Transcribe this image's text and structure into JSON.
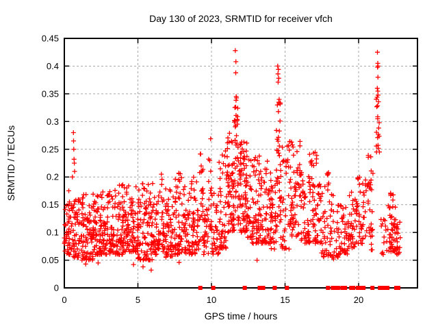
{
  "page": {
    "background": "#ffffff"
  },
  "chart_data": {
    "type": "scatter",
    "title": "Day 130 of 2023, SRMTID for receiver vfch",
    "xlabel": "GPS time / hours",
    "ylabel": "SRMTID / TECUs",
    "xlim": [
      0,
      24
    ],
    "ylim": [
      0,
      0.45
    ],
    "xticks": [
      0,
      5,
      10,
      15,
      20
    ],
    "xtick_labels": [
      "0",
      "5",
      "10",
      "15",
      "20"
    ],
    "yticks": [
      0,
      0.05,
      0.1,
      0.15,
      0.2,
      0.25,
      0.3,
      0.35,
      0.4,
      0.45
    ],
    "ytick_labels": [
      "0",
      "0.05",
      "0.1",
      "0.15",
      "0.2",
      "0.25",
      "0.3",
      "0.35",
      "0.4",
      "0.45"
    ],
    "grid": {
      "style": "dashed",
      "color": "#a8a8a8"
    },
    "legend": "none",
    "series_name": "SRMTID",
    "marker": {
      "shape": "plus",
      "color": "#ff0000",
      "size": 7
    },
    "zero_marker": {
      "shape": "filled-square",
      "color": "#ff0000",
      "size": 6
    },
    "seed": 20230510,
    "point_clusters": [
      [
        0.0,
        0.5,
        45,
        0.06,
        0.155,
        1.4
      ],
      [
        0.5,
        1.0,
        45,
        0.055,
        0.16,
        1.5
      ],
      [
        1.0,
        2.0,
        95,
        0.05,
        0.17,
        1.6
      ],
      [
        2.0,
        3.0,
        95,
        0.06,
        0.175,
        1.6
      ],
      [
        3.0,
        4.0,
        95,
        0.06,
        0.19,
        1.7
      ],
      [
        4.0,
        5.0,
        95,
        0.065,
        0.185,
        1.6
      ],
      [
        5.0,
        6.0,
        95,
        0.05,
        0.19,
        1.7
      ],
      [
        6.0,
        6.3,
        25,
        0.06,
        0.17,
        1.5
      ],
      [
        6.3,
        6.7,
        35,
        0.07,
        0.235,
        1.8
      ],
      [
        6.7,
        7.5,
        70,
        0.055,
        0.18,
        1.6
      ],
      [
        7.5,
        8.1,
        55,
        0.06,
        0.21,
        1.8
      ],
      [
        8.1,
        9.0,
        75,
        0.06,
        0.2,
        1.7
      ],
      [
        9.0,
        9.2,
        15,
        0.07,
        0.15,
        1.5
      ],
      [
        9.2,
        9.45,
        22,
        0.08,
        0.245,
        1.3
      ],
      [
        9.45,
        9.8,
        25,
        0.06,
        0.16,
        1.5
      ],
      [
        9.8,
        10.05,
        20,
        0.1,
        0.275,
        1.2
      ],
      [
        10.05,
        10.5,
        30,
        0.06,
        0.18,
        1.5
      ],
      [
        10.5,
        11.0,
        45,
        0.07,
        0.25,
        1.6
      ],
      [
        11.0,
        11.55,
        65,
        0.1,
        0.28,
        1.2
      ],
      [
        11.55,
        11.8,
        30,
        0.12,
        0.345,
        1.1
      ],
      [
        11.8,
        12.45,
        85,
        0.1,
        0.265,
        1.3
      ],
      [
        12.45,
        13.35,
        80,
        0.08,
        0.24,
        1.6
      ],
      [
        13.35,
        14.05,
        60,
        0.08,
        0.23,
        1.7
      ],
      [
        14.05,
        14.4,
        30,
        0.07,
        0.19,
        1.5
      ],
      [
        14.4,
        14.7,
        30,
        0.1,
        0.35,
        1.1
      ],
      [
        14.7,
        15.3,
        40,
        0.07,
        0.26,
        1.7
      ],
      [
        15.3,
        16.05,
        60,
        0.09,
        0.265,
        1.3
      ],
      [
        16.05,
        16.65,
        45,
        0.08,
        0.21,
        1.5
      ],
      [
        16.65,
        17.3,
        55,
        0.08,
        0.245,
        1.4
      ],
      [
        17.3,
        18.05,
        45,
        0.055,
        0.215,
        1.6
      ],
      [
        18.05,
        18.65,
        35,
        0.055,
        0.17,
        1.7
      ],
      [
        18.65,
        19.3,
        40,
        0.06,
        0.155,
        1.5
      ],
      [
        19.3,
        19.85,
        35,
        0.07,
        0.175,
        1.4
      ],
      [
        19.85,
        20.55,
        45,
        0.08,
        0.2,
        1.4
      ],
      [
        20.55,
        21.0,
        30,
        0.06,
        0.245,
        1.2
      ],
      [
        21.2,
        21.42,
        20,
        0.24,
        0.355,
        1.0
      ],
      [
        21.45,
        22.0,
        15,
        0.06,
        0.125,
        1.3
      ],
      [
        22.0,
        22.55,
        45,
        0.065,
        0.175,
        1.5
      ],
      [
        22.55,
        22.85,
        20,
        0.06,
        0.12,
        1.4
      ]
    ],
    "outlier_points": [
      [
        0.3,
        0.175
      ],
      [
        0.35,
        0.155
      ],
      [
        0.55,
        0.2
      ],
      [
        0.62,
        0.28
      ],
      [
        0.63,
        0.265
      ],
      [
        0.64,
        0.25
      ],
      [
        0.66,
        0.232
      ],
      [
        0.68,
        0.225
      ],
      [
        0.7,
        0.21
      ],
      [
        1.45,
        0.043
      ],
      [
        2.3,
        0.045
      ],
      [
        4.7,
        0.042
      ],
      [
        5.35,
        0.038
      ],
      [
        5.9,
        0.032
      ],
      [
        7.8,
        0.046
      ],
      [
        11.62,
        0.428
      ],
      [
        11.66,
        0.408
      ],
      [
        11.65,
        0.388
      ],
      [
        11.68,
        0.345
      ],
      [
        11.64,
        0.326
      ],
      [
        11.67,
        0.311
      ],
      [
        13.1,
        0.05
      ],
      [
        14.5,
        0.4
      ],
      [
        14.55,
        0.394
      ],
      [
        14.52,
        0.386
      ],
      [
        14.57,
        0.378
      ],
      [
        14.53,
        0.371
      ],
      [
        14.6,
        0.34
      ],
      [
        14.48,
        0.33
      ],
      [
        14.55,
        0.318
      ],
      [
        18.3,
        0.052
      ],
      [
        21.28,
        0.425
      ],
      [
        21.3,
        0.405
      ],
      [
        21.32,
        0.4
      ],
      [
        21.29,
        0.398
      ],
      [
        21.31,
        0.38
      ],
      [
        21.27,
        0.36
      ]
    ],
    "zero_value_hours": [
      9.24,
      10.12,
      12.26,
      13.28,
      13.51,
      14.3,
      15.13,
      17.92,
      18.25,
      18.48,
      18.6,
      18.9,
      19.08,
      19.5,
      19.64,
      19.96,
      20.15,
      20.33,
      20.94,
      21.45,
      21.63,
      21.8,
      21.96,
      22.56,
      22.7
    ]
  }
}
